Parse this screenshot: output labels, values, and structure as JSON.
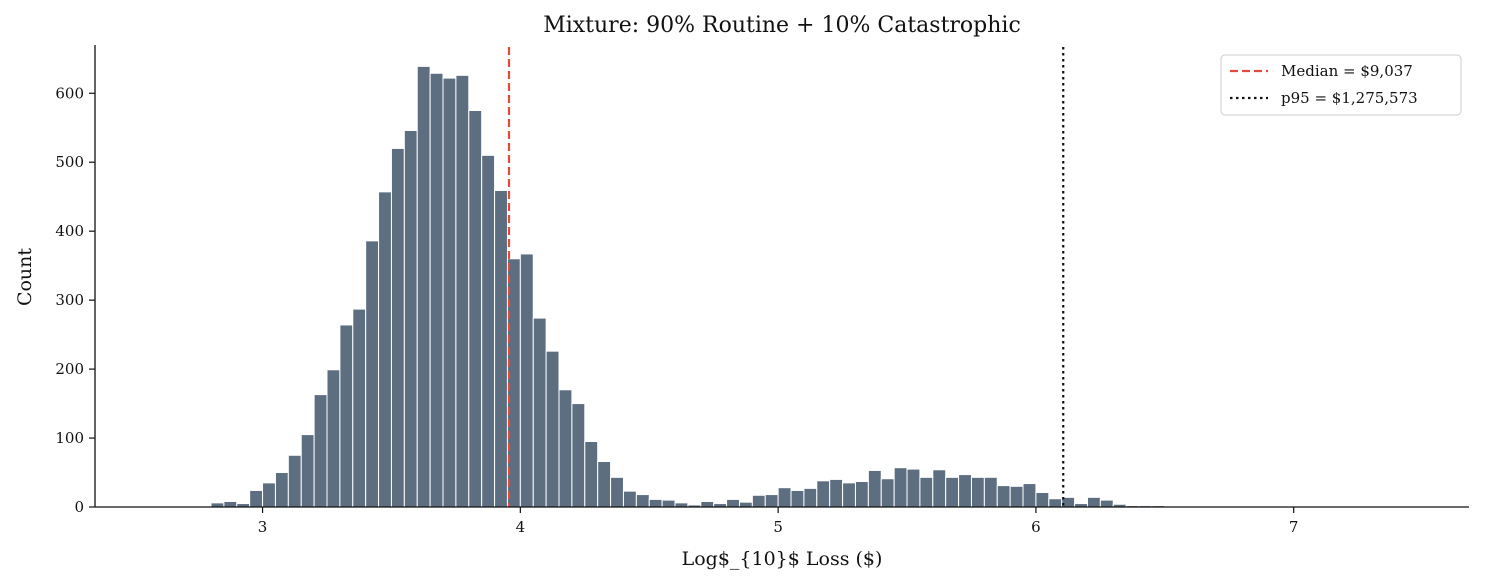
{
  "chart_data": {
    "type": "bar",
    "subtype": "histogram",
    "title": "Mixture: 90% Routine + 10% Catastrophic",
    "xlabel": "Log$_{10}$ Loss ($)",
    "ylabel": "Count",
    "xlim": [
      2.35,
      7.68
    ],
    "ylim": [
      0,
      670
    ],
    "xticks": [
      3,
      4,
      5,
      6,
      7
    ],
    "yticks": [
      0,
      100,
      200,
      300,
      400,
      500,
      600
    ],
    "grid": false,
    "legend_position": "top-right",
    "bar_color": "#5d6e80",
    "bin_width": 0.05,
    "bins_start": 2.7,
    "counts": [
      1,
      1,
      6,
      8,
      5,
      24,
      35,
      50,
      75,
      105,
      163,
      199,
      264,
      287,
      386,
      457,
      520,
      546,
      639,
      629,
      622,
      626,
      575,
      510,
      459,
      360,
      367,
      274,
      226,
      170,
      150,
      95,
      66,
      43,
      23,
      18,
      11,
      10,
      6,
      3,
      8,
      5,
      11,
      7,
      17,
      18,
      28,
      24,
      27,
      38,
      40,
      35,
      37,
      53,
      41,
      57,
      55,
      43,
      54,
      43,
      47,
      43,
      43,
      31,
      30,
      34,
      21,
      12,
      14,
      5,
      14,
      10,
      4,
      2,
      2,
      2,
      1,
      1,
      1,
      1
    ],
    "reference_lines": [
      {
        "label": "Median = $9,037",
        "x": 3.956,
        "color": "#e24a3b",
        "style": "dashed"
      },
      {
        "label": "p95 = $1,275,573",
        "x": 6.106,
        "color": "#111111",
        "style": "dotted"
      }
    ]
  }
}
